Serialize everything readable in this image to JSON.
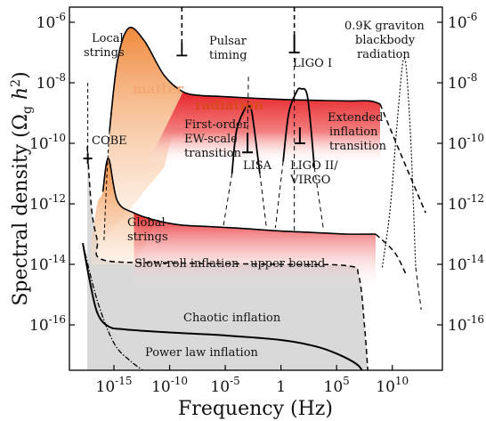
{
  "chart_data": {
    "type": "area",
    "xlabel": "Frequency (Hz)",
    "ylabel_text": "Spectral density (Ω",
    "ylabel_sub": "g",
    "ylabel_h": " h",
    "ylabel_sup": "2",
    "ylabel_close": ")",
    "x_scale": "log10",
    "y_scale": "log10",
    "xlim_log10": [
      -19,
      14.5
    ],
    "ylim_log10": [
      -17.5,
      -5.5
    ],
    "grid": false,
    "x_ticks": [
      {
        "exp": "-15",
        "log": -15
      },
      {
        "exp": "-10",
        "log": -10
      },
      {
        "exp": "-5",
        "log": -5
      },
      {
        "exp": "",
        "log": 0,
        "text": "1"
      },
      {
        "exp": "5",
        "log": 5
      },
      {
        "exp": "10",
        "log": 10
      }
    ],
    "y_ticks": [
      {
        "exp": "-6",
        "log": -6
      },
      {
        "exp": "-8",
        "log": -8
      },
      {
        "exp": "-10",
        "log": -10
      },
      {
        "exp": "-12",
        "log": -12
      },
      {
        "exp": "-14",
        "log": -14
      },
      {
        "exp": "-16",
        "log": -16
      }
    ],
    "labels": {
      "local_strings_1": "Local",
      "local_strings_2": "strings",
      "pulsar_1": "Pulsar",
      "pulsar_2": "timing",
      "ligo1": "LIGO I",
      "graviton_1": "0.9K graviton",
      "graviton_2": "blackbody",
      "graviton_3": "radiation",
      "matter": "matter",
      "radiation": "radiation",
      "cobe": "COBE",
      "ew_1": "First-order",
      "ew_2": "EW-scale",
      "ew_3": "transition",
      "lisa": "LISA",
      "ligo2_1": "LIGO II/",
      "ligo2_2": "VIRGO",
      "ext_1": "Extended",
      "ext_2": "inflation",
      "ext_3": "transition",
      "global_1": "Global",
      "global_2": "strings",
      "slowroll": "Slow-roll inflation - upper bound",
      "chaotic": "Chaotic inflation",
      "powerlaw": "Power law inflation"
    },
    "colors": {
      "matter": "#f08a3c",
      "radiation": "#e8262a",
      "chaotic_fill": "#d9d9d9",
      "line": "#000000"
    },
    "series": {
      "chaotic_inflation": {
        "x": [
          -17.8,
          -17.2,
          -16.5,
          -15.5,
          -14,
          -10,
          -5,
          0,
          3,
          5,
          6.8,
          7.4,
          7.8
        ],
        "y": [
          -13.3,
          -14.5,
          -15.6,
          -16.05,
          -16.15,
          -16.25,
          -16.35,
          -16.5,
          -16.7,
          -16.95,
          -17.3,
          -17.6,
          -18
        ]
      },
      "power_law_inflation": {
        "x": [
          -17.8,
          -16.5,
          -15,
          -13.5,
          -12
        ],
        "y": [
          -13.3,
          -15.2,
          -16.6,
          -17.2,
          -17.6
        ]
      },
      "slow_roll_upper_bound": {
        "x": [
          -17.4,
          -17,
          -16.5,
          -16,
          -10,
          0,
          6,
          7,
          7.5,
          7.8
        ],
        "y": [
          -10.1,
          -12.2,
          -13.2,
          -13.85,
          -13.95,
          -14,
          -14.05,
          -14.4,
          -16,
          -17.5
        ]
      },
      "local_strings": {
        "x": [
          -15.9,
          -15.4,
          -14.7,
          -13.7,
          -12.3,
          -10.5,
          -8.8,
          -7.2,
          -5.5,
          -3,
          0,
          3,
          6,
          8,
          8.9,
          10.7,
          13
        ],
        "y": [
          -13.2,
          -9.6,
          -7.3,
          -6.2,
          -6.6,
          -7.75,
          -8.3,
          -8.42,
          -8.45,
          -8.5,
          -8.55,
          -8.58,
          -8.6,
          -8.6,
          -8.7,
          -10.3,
          -12.3
        ]
      },
      "global_strings": {
        "x": [
          -17,
          -16.5,
          -16,
          -15.5,
          -14.7,
          -13.2,
          -11.2,
          -9,
          -6.5,
          -4,
          -2,
          0,
          3,
          6,
          8.5,
          10.2,
          11.2
        ],
        "y": [
          -13.2,
          -12,
          -11.6,
          -10.5,
          -11.9,
          -12.3,
          -12.55,
          -12.7,
          -12.75,
          -12.8,
          -12.85,
          -12.9,
          -12.95,
          -13.0,
          -13.0,
          -13.6,
          -14.3
        ]
      },
      "graviton_blackbody": {
        "x": [
          9.1,
          9.8,
          10.4,
          10.8,
          11.05,
          11.3,
          11.7,
          12.1
        ],
        "y": [
          -14.1,
          -12.2,
          -9.5,
          -7.8,
          -7.2,
          -7.7,
          -10.2,
          -14.1
        ]
      },
      "ew_transition": {
        "x": [
          -4.4,
          -4.0,
          -3.3,
          -3.0,
          -2.6,
          -1.9
        ],
        "y": [
          -11.0,
          -9.6,
          -8.9,
          -8.8,
          -9.0,
          -11.0
        ]
      },
      "extended_inflation": {
        "x": [
          0.2,
          0.7,
          1.4,
          1.8,
          2.4,
          3.0
        ],
        "y": [
          -10.6,
          -9.0,
          -8.3,
          -8.2,
          -8.5,
          -10.8
        ]
      }
    },
    "detectors": {
      "pulsar": {
        "x": -8.9,
        "y_bottom": -7.1
      },
      "ligo1": {
        "x": 1.2,
        "y_bottom": -7.0
      },
      "cobe": {
        "x": -17.35,
        "y": -10.5
      },
      "lisa": {
        "x": -3.0,
        "y_bottom": -10.3
      },
      "ligo2": {
        "x": 1.7,
        "y_bottom": -10.0
      }
    }
  }
}
